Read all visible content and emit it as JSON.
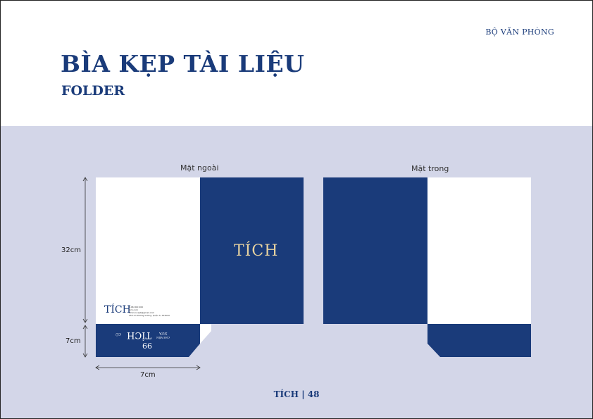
{
  "header": {
    "section": "BỘ VĂN PHÒNG",
    "title": "BÌA KẸP TÀI LIỆU",
    "subtitle": "FOLDER"
  },
  "views": {
    "outer_label": "Mặt ngoài",
    "inner_label": "Mặt trong"
  },
  "dimensions": {
    "height_main": "32cm",
    "height_flap": "7cm",
    "width_flap": "7cm"
  },
  "brand": {
    "logo": "TÍCH",
    "flap_logo": "TÍCH",
    "flap_line1": "XƯA",
    "flap_line2": "CHUYỆN",
    "flap_mark": "CŨ",
    "quote_mark": "99",
    "contact_line1": "0.96 000 000",
    "contact_line2": "tich.com",
    "contact_line3": "tichconcept@gmail.com",
    "contact_line4": "253 An Dương Vương, Quận 5, TP.HCM"
  },
  "colors": {
    "navy": "#1a3b7a",
    "gold": "#e8d3a0",
    "background": "#d3d6e8"
  },
  "footer": {
    "brand": "TÍCH",
    "page": "| 48"
  }
}
